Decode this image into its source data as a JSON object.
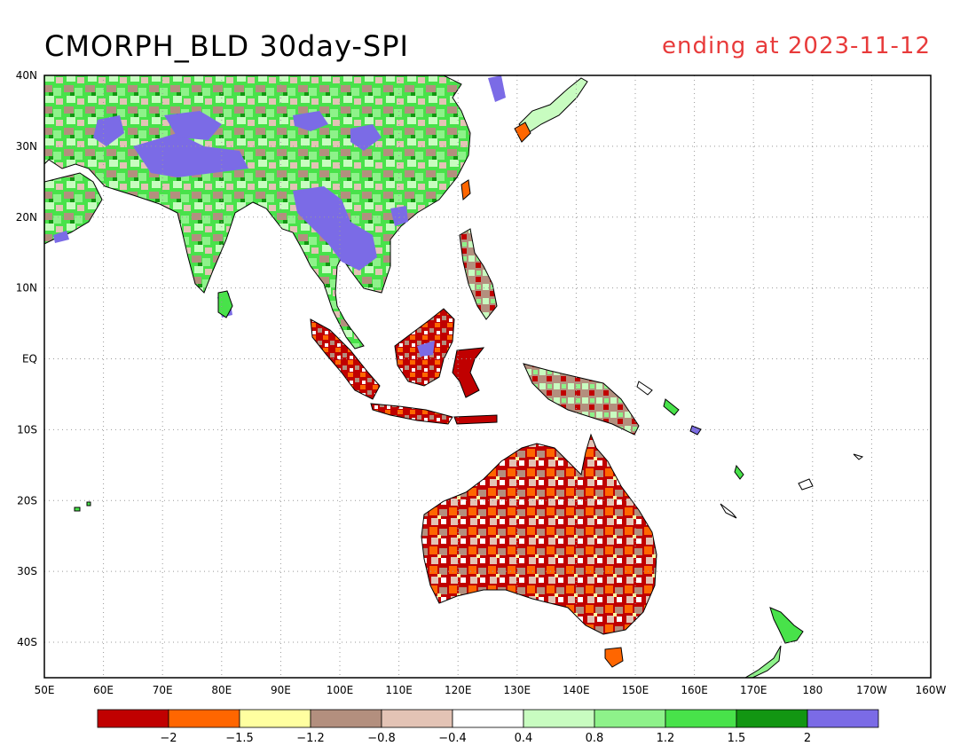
{
  "title": "CMORPH_BLD 30day-SPI",
  "date_label": "ending at 2023-11-12",
  "date_color": "#e83b3b",
  "map": {
    "lon_range": [
      50,
      200
    ],
    "lat_range": [
      -45,
      40
    ],
    "lon_ticks": [
      "50E",
      "60E",
      "70E",
      "80E",
      "90E",
      "100E",
      "110E",
      "120E",
      "130E",
      "140E",
      "150E",
      "160E",
      "170E",
      "180",
      "170W",
      "160W"
    ],
    "lat_ticks": [
      "40N",
      "30N",
      "20N",
      "10N",
      "EQ",
      "10S",
      "20S",
      "30S",
      "40S"
    ],
    "grid": "dotted"
  },
  "colorbar": {
    "colors": [
      "#c00000",
      "#ff6600",
      "#ffffa0",
      "#b38f7e",
      "#e3c3b5",
      "#ffffff",
      "#c8fcc0",
      "#8ef28a",
      "#48e24a",
      "#129612",
      "#7b6be6"
    ],
    "labels": [
      "−2",
      "−1.5",
      "−1.2",
      "−0.8",
      "−0.4",
      "0.4",
      "0.8",
      "1.2",
      "1.5",
      "2"
    ]
  }
}
